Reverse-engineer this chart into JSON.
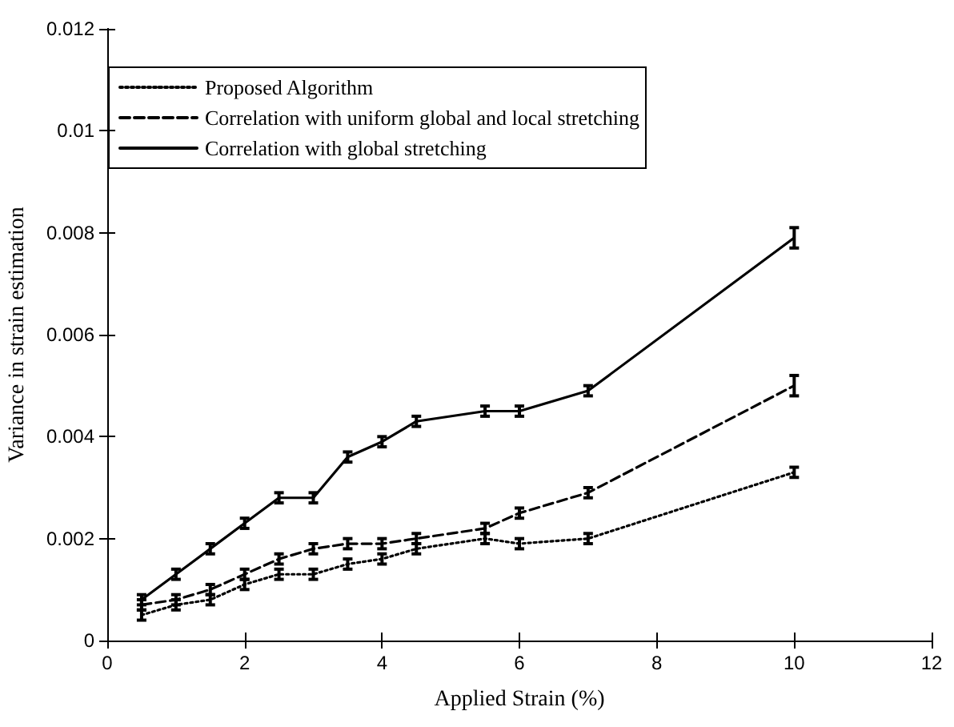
{
  "chart_data": {
    "type": "line",
    "xlabel": "Applied Strain (%)",
    "ylabel": "Variance in strain estimation",
    "x": [
      0.5,
      1,
      1.5,
      2,
      2.5,
      3,
      3.5,
      4,
      4.5,
      5.5,
      6,
      7,
      10
    ],
    "series": [
      {
        "name": "Proposed Algorithm",
        "color": "#000000",
        "line_style": "dotted",
        "values": [
          0.0005,
          0.0007,
          0.0008,
          0.0011,
          0.0013,
          0.0013,
          0.0015,
          0.0016,
          0.0018,
          0.002,
          0.0019,
          0.002,
          0.0033
        ],
        "errors": [
          0.0001,
          0.0001,
          0.0001,
          0.0001,
          0.0001,
          0.0001,
          0.0001,
          0.0001,
          0.0001,
          0.0001,
          0.0001,
          0.0001,
          0.0001
        ]
      },
      {
        "name": "Correlation with uniform global and local stretching",
        "color": "#000000",
        "line_style": "dashed",
        "values": [
          0.0007,
          0.0008,
          0.001,
          0.0013,
          0.0016,
          0.0018,
          0.0019,
          0.0019,
          0.002,
          0.0022,
          0.0025,
          0.0029,
          0.005
        ],
        "errors": [
          0.0001,
          0.0001,
          0.0001,
          0.0001,
          0.0001,
          0.0001,
          0.0001,
          0.0001,
          0.0001,
          0.0001,
          0.0001,
          0.0001,
          0.0002
        ]
      },
      {
        "name": "Correlation with global stretching",
        "color": "#000000",
        "line_style": "solid",
        "values": [
          0.0008,
          0.0013,
          0.0018,
          0.0023,
          0.0028,
          0.0028,
          0.0036,
          0.0039,
          0.0043,
          0.0045,
          0.0045,
          0.0049,
          0.0079
        ],
        "errors": [
          0.0001,
          0.0001,
          0.0001,
          0.0001,
          0.0001,
          0.0001,
          0.0001,
          0.0001,
          0.0001,
          0.0001,
          0.0001,
          0.0001,
          0.0002
        ]
      }
    ],
    "xlim": [
      0,
      12
    ],
    "xticks": [
      0,
      2,
      4,
      6,
      8,
      10,
      12
    ],
    "ylim": [
      0,
      0.012
    ],
    "yticks": [
      0,
      0.002,
      0.004,
      0.006,
      0.008,
      0.01,
      0.012
    ],
    "grid": false,
    "legend": "top",
    "marker": "none"
  }
}
